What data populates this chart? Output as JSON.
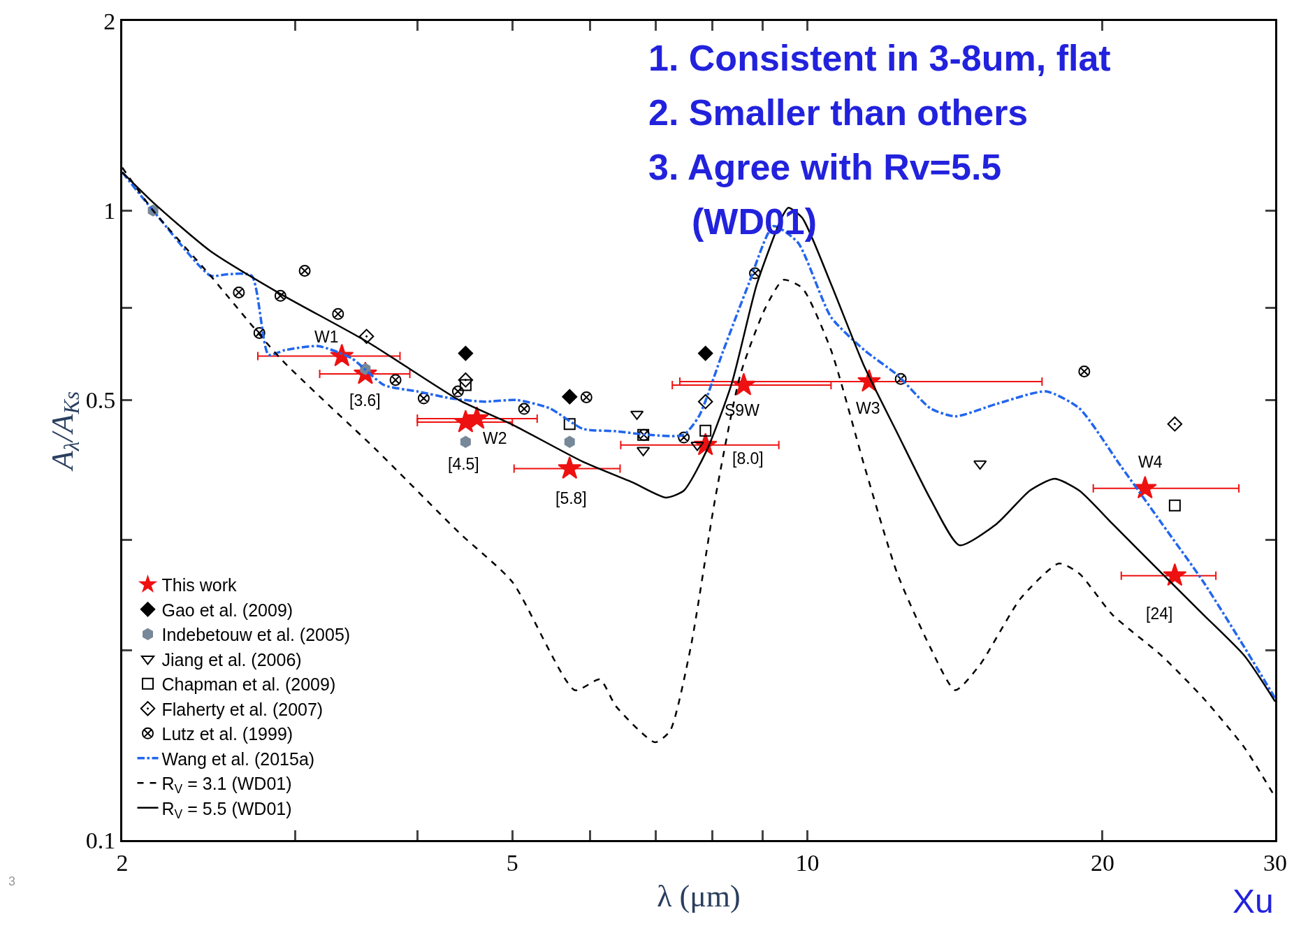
{
  "chart_data": {
    "type": "scatter",
    "xlabel": "λ (μm)",
    "ylabel": "A$_{λ}$/A$_{Ks}$",
    "log": "xy",
    "legend": "bottom left",
    "xlim": [
      2,
      30
    ],
    "ylim": [
      0.1,
      2
    ],
    "xticks": [
      2,
      {
        "value": 3,
        "label": null
      },
      {
        "value": 4,
        "label": null
      },
      5,
      {
        "value": 6,
        "label": null
      },
      {
        "value": 7,
        "label": null
      },
      {
        "value": 8,
        "label": null
      },
      {
        "value": 9,
        "label": null
      },
      10,
      20,
      30
    ],
    "yticks": [
      0.1,
      {
        "value": 0.2,
        "label": null
      },
      {
        "value": 0.3,
        "label": null
      },
      0.5,
      {
        "value": 0.7,
        "label": null
      },
      1,
      2
    ],
    "series": [
      {
        "name": "This work",
        "marker": "star",
        "color": "#ee1111",
        "x": [
          3.35,
          3.54,
          4.48,
          4.6,
          5.72,
          7.87,
          8.61,
          11.56,
          22.1,
          23.7
        ],
        "values": [
          0.587,
          0.55,
          0.461,
          0.467,
          0.389,
          0.424,
          0.528,
          0.535,
          0.362,
          0.263
        ],
        "xerrors": [
          [
            2.75,
            3.84
          ],
          [
            3.18,
            3.93
          ],
          [
            4.0,
            5.0
          ],
          [
            4.0,
            5.3
          ],
          [
            5.02,
            6.44
          ],
          [
            6.45,
            9.35
          ],
          [
            7.28,
            10.57
          ],
          [
            7.41,
            17.35
          ],
          [
            19.57,
            27.55
          ],
          [
            20.9,
            26.1
          ]
        ]
      },
      {
        "name": "Gao et al. (2009)",
        "marker": "diamond",
        "color": "#000000",
        "x": [
          4.48,
          5.72,
          7.87
        ],
        "values": [
          0.593,
          0.506,
          0.593
        ]
      },
      {
        "name": "Indebetouw et al. (2005)",
        "marker": "circle",
        "color": "#778899",
        "x": [
          2.15,
          3.54,
          4.48,
          5.72
        ],
        "values": [
          1.0,
          0.56,
          0.429,
          0.429
        ]
      },
      {
        "name": "Jiang et al. (2006)",
        "marker": "triangle-down-open",
        "color": "#000000",
        "x": [
          6.7,
          6.8,
          7.72,
          15.0
        ],
        "values": [
          0.475,
          0.416,
          0.424,
          0.396
        ]
      },
      {
        "name": "Chapman et al. (2009)",
        "marker": "square-open",
        "color": "#000000",
        "x": [
          4.48,
          5.72,
          6.8,
          7.87,
          23.7
        ],
        "values": [
          0.528,
          0.458,
          0.44,
          0.447,
          0.34
        ]
      },
      {
        "name": "Flaherty et al. (2007)",
        "marker": "diamond-open-dot",
        "color": "#000000",
        "x": [
          3.55,
          4.48,
          5.72,
          7.87,
          23.7
        ],
        "values": [
          0.631,
          0.538,
          0.506,
          0.497,
          0.458
        ]
      },
      {
        "name": "Lutz et al. (1999)",
        "marker": "cross",
        "color": "#000000",
        "x": [
          2.63,
          2.76,
          2.9,
          3.07,
          3.32,
          3.8,
          4.06,
          4.4,
          5.14,
          5.95,
          6.81,
          7.48,
          8.84,
          12.45,
          19.16
        ],
        "values": [
          0.741,
          0.639,
          0.732,
          0.802,
          0.685,
          0.538,
          0.503,
          0.516,
          0.484,
          0.505,
          0.44,
          0.436,
          0.795,
          0.54,
          0.555
        ]
      },
      {
        "name": "Wang et al. (2015a)",
        "type": "line",
        "line_style": "dashdot",
        "color": "#2266ee",
        "x": [
          2.0,
          2.15,
          2.46,
          2.56,
          2.71,
          2.82,
          2.93,
          3.17,
          3.43,
          3.7,
          4.0,
          4.33,
          4.68,
          5.05,
          5.46,
          5.9,
          6.38,
          6.9,
          7.47,
          7.75,
          8.21,
          8.71,
          9.23,
          9.78,
          10.57,
          11.43,
          12.35,
          13.35,
          14.15,
          15.6,
          17.52,
          18.94,
          20.87,
          23.0,
          25.35,
          27.93,
          30.0
        ],
        "values": [
          1.15,
          1.0,
          0.788,
          0.792,
          0.788,
          0.59,
          0.6,
          0.609,
          0.582,
          0.528,
          0.516,
          0.503,
          0.497,
          0.5,
          0.485,
          0.45,
          0.446,
          0.44,
          0.44,
          0.471,
          0.6,
          0.764,
          0.944,
          0.889,
          0.677,
          0.6,
          0.548,
          0.485,
          0.471,
          0.493,
          0.516,
          0.485,
          0.393,
          0.318,
          0.257,
          0.202,
          0.168
        ]
      },
      {
        "name": "R$_{V}$ = 3.1 (WD01)",
        "type": "line",
        "line_style": "dashed",
        "color": "#000000",
        "x": [
          2.0,
          2.15,
          2.46,
          2.9,
          3.63,
          4.41,
          5.0,
          5.79,
          6.14,
          6.38,
          6.99,
          7.24,
          7.6,
          8.05,
          8.54,
          9.05,
          9.45,
          9.88,
          10.57,
          11.43,
          12.35,
          13.35,
          14.15,
          15.0,
          16.5,
          18.05,
          18.94,
          20.47,
          23.0,
          25.35,
          27.93,
          30.0
        ],
        "values": [
          1.17,
          1.0,
          0.788,
          0.582,
          0.417,
          0.308,
          0.257,
          0.173,
          0.18,
          0.163,
          0.143,
          0.149,
          0.202,
          0.348,
          0.548,
          0.698,
          0.776,
          0.753,
          0.6,
          0.393,
          0.265,
          0.202,
          0.173,
          0.19,
          0.242,
          0.275,
          0.265,
          0.228,
          0.196,
          0.168,
          0.14,
          0.117
        ]
      },
      {
        "name": "R$_{V}$ = 5.5 (WD01)",
        "type": "line",
        "line_style": "solid",
        "color": "#000000",
        "x": [
          2.0,
          2.15,
          2.46,
          2.9,
          3.56,
          4.41,
          5.0,
          5.9,
          6.63,
          7.17,
          7.48,
          7.9,
          8.37,
          8.88,
          9.41,
          9.56,
          9.88,
          10.57,
          11.43,
          12.35,
          13.35,
          14.29,
          15.6,
          16.86,
          17.87,
          18.94,
          20.47,
          23.0,
          25.35,
          27.93,
          30.0
        ],
        "values": [
          1.15,
          1.03,
          0.862,
          0.737,
          0.618,
          0.5,
          0.457,
          0.399,
          0.37,
          0.35,
          0.359,
          0.417,
          0.531,
          0.764,
          0.973,
          1.01,
          0.973,
          0.764,
          0.565,
          0.443,
          0.348,
          0.294,
          0.318,
          0.359,
          0.375,
          0.359,
          0.318,
          0.265,
          0.228,
          0.196,
          0.166
        ]
      }
    ],
    "annotations": [
      {
        "text": "W1",
        "x": 3.35,
        "y": 0.587
      },
      {
        "text": "[3.6]",
        "x": 3.54,
        "y": 0.55
      },
      {
        "text": "[4.5]",
        "x": 4.48,
        "y": 0.461
      },
      {
        "text": "W2",
        "x": 4.6,
        "y": 0.467
      },
      {
        "text": "[5.8]",
        "x": 5.72,
        "y": 0.389
      },
      "[8.0]",
      {
        "text": "S9W",
        "x": 8.61,
        "y": 0.528
      },
      {
        "text": "W3",
        "x": 11.56,
        "y": 0.535
      },
      {
        "text": "W4",
        "x": 22.1,
        "y": 0.362
      },
      {
        "text": "[24]",
        "x": 23.7,
        "y": 0.263
      },
      "1. Consistent in 3-8um, flat",
      "2. Smaller than others",
      "3. Agree with Rv=5.5",
      "(WD01)",
      "3",
      "Xu"
    ]
  }
}
